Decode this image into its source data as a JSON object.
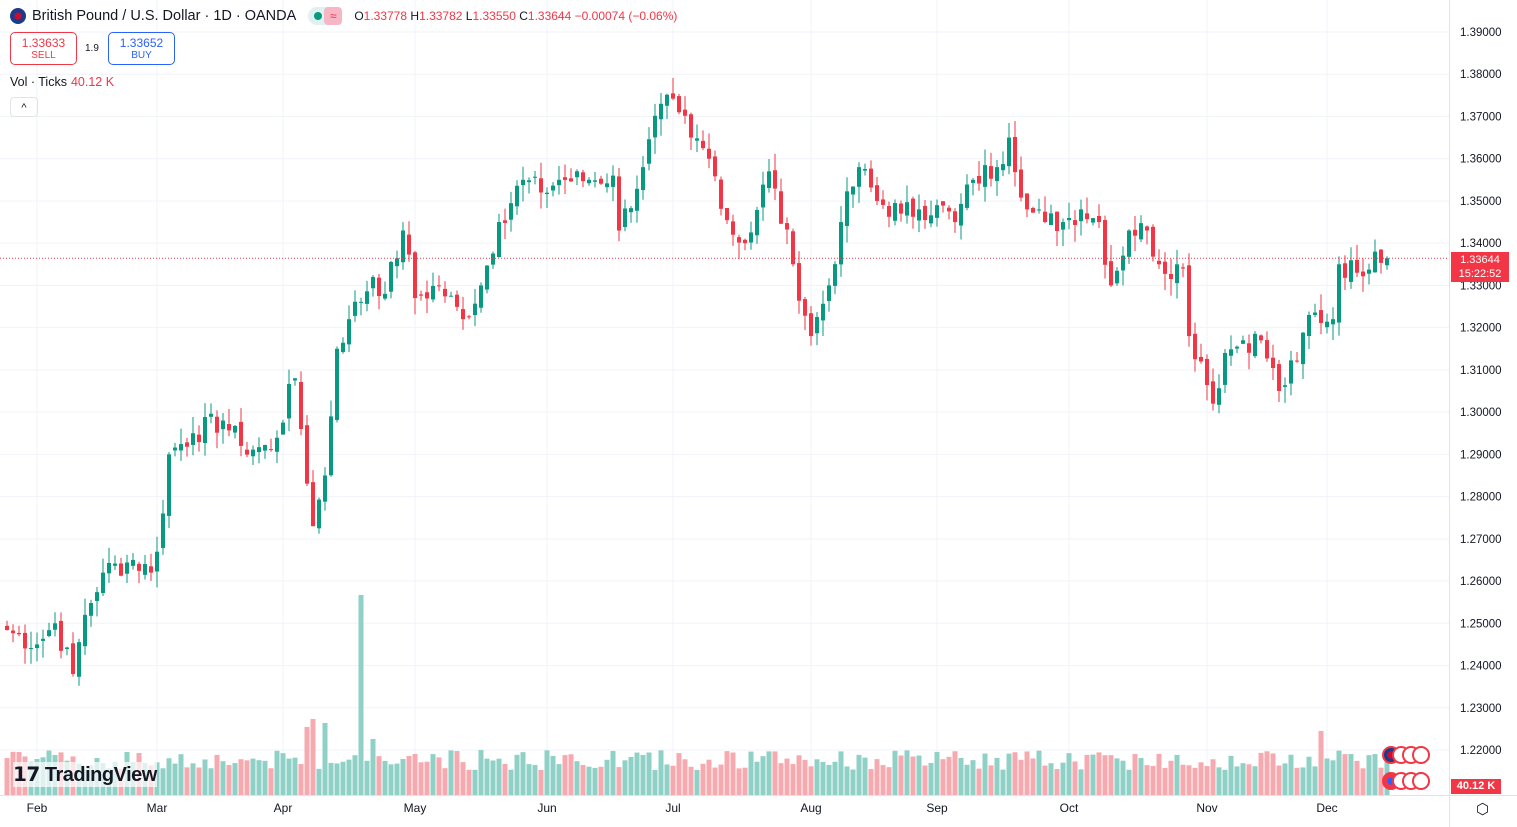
{
  "header": {
    "title": "British Pound / U.S. Dollar · 1D · OANDA",
    "open_label": "O",
    "open": "1.33778",
    "high_label": "H",
    "high": "1.33782",
    "low_label": "L",
    "low": "1.33550",
    "close_label": "C",
    "close": "1.33644",
    "change": "−0.00074 (−0.06%)",
    "market_icon": "≈"
  },
  "trade": {
    "sell_price": "1.33633",
    "sell_label": "SELL",
    "spread": "1.9",
    "buy_price": "1.33652",
    "buy_label": "BUY"
  },
  "volume": {
    "label": "Vol · Ticks",
    "value": "40.12 K"
  },
  "collapse_icon": "^",
  "price_tag": {
    "price": "1.33644",
    "countdown": "15:22:52"
  },
  "logo": "TradingView",
  "colors": {
    "up": "#089981",
    "down": "#f23645",
    "up_vol": "#8fd1c6",
    "down_vol": "#f7a9b0"
  },
  "chart_data": {
    "type": "candlestick",
    "y_ticks": [
      "1.39000",
      "1.38000",
      "1.37000",
      "1.36000",
      "1.35000",
      "1.34000",
      "1.33000",
      "1.32000",
      "1.31000",
      "1.30000",
      "1.29000",
      "1.28000",
      "1.27000",
      "1.26000",
      "1.25000",
      "1.24000",
      "1.23000",
      "1.22000"
    ],
    "ylim": [
      1.22,
      1.39
    ],
    "x_ticks": [
      {
        "label": "Feb",
        "day": 5
      },
      {
        "label": "Mar",
        "day": 25
      },
      {
        "label": "Apr",
        "day": 46
      },
      {
        "label": "May",
        "day": 68
      },
      {
        "label": "Jun",
        "day": 90
      },
      {
        "label": "Jul",
        "day": 111
      },
      {
        "label": "Aug",
        "day": 134
      },
      {
        "label": "Sep",
        "day": 155
      },
      {
        "label": "Oct",
        "day": 177
      },
      {
        "label": "Nov",
        "day": 200
      },
      {
        "label": "Dec",
        "day": 220
      }
    ],
    "close_anchors": [
      [
        0,
        1.2484
      ],
      [
        5,
        1.245
      ],
      [
        8,
        1.25
      ],
      [
        11,
        1.238
      ],
      [
        13,
        1.252
      ],
      [
        16,
        1.262
      ],
      [
        21,
        1.265
      ],
      [
        24,
        1.262
      ],
      [
        26,
        1.276
      ],
      [
        27,
        1.29
      ],
      [
        31,
        1.295
      ],
      [
        36,
        1.298
      ],
      [
        39,
        1.292
      ],
      [
        44,
        1.291
      ],
      [
        48,
        1.308
      ],
      [
        51,
        1.273
      ],
      [
        53,
        1.285
      ],
      [
        55,
        1.315
      ],
      [
        57,
        1.322
      ],
      [
        61,
        1.332
      ],
      [
        63,
        1.328
      ],
      [
        66,
        1.343
      ],
      [
        68,
        1.327
      ],
      [
        72,
        1.33
      ],
      [
        76,
        1.322
      ],
      [
        79,
        1.33
      ],
      [
        82,
        1.345
      ],
      [
        86,
        1.355
      ],
      [
        89,
        1.352
      ],
      [
        92,
        1.355
      ],
      [
        97,
        1.355
      ],
      [
        101,
        1.356
      ],
      [
        102,
        1.343
      ],
      [
        106,
        1.358
      ],
      [
        109,
        1.373
      ],
      [
        112,
        1.371
      ],
      [
        114,
        1.365
      ],
      [
        117,
        1.36
      ],
      [
        121,
        1.342
      ],
      [
        123,
        1.34
      ],
      [
        127,
        1.357
      ],
      [
        131,
        1.335
      ],
      [
        134,
        1.318
      ],
      [
        137,
        1.33
      ],
      [
        139,
        1.345
      ],
      [
        142,
        1.358
      ],
      [
        145,
        1.35
      ],
      [
        149,
        1.347
      ],
      [
        152,
        1.348
      ],
      [
        155,
        1.349
      ],
      [
        158,
        1.345
      ],
      [
        161,
        1.355
      ],
      [
        165,
        1.358
      ],
      [
        167,
        1.365
      ],
      [
        170,
        1.348
      ],
      [
        173,
        1.345
      ],
      [
        176,
        1.345
      ],
      [
        179,
        1.348
      ],
      [
        182,
        1.345
      ],
      [
        184,
        1.33
      ],
      [
        187,
        1.343
      ],
      [
        190,
        1.343
      ],
      [
        192,
        1.335
      ],
      [
        196,
        1.334
      ],
      [
        197,
        1.318
      ],
      [
        199,
        1.312
      ],
      [
        201,
        1.302
      ],
      [
        203,
        1.314
      ],
      [
        206,
        1.317
      ],
      [
        209,
        1.317
      ],
      [
        212,
        1.305
      ],
      [
        215,
        1.312
      ],
      [
        217,
        1.323
      ],
      [
        221,
        1.322
      ],
      [
        222,
        1.335
      ],
      [
        225,
        1.333
      ],
      [
        228,
        1.338
      ],
      [
        230,
        1.33644
      ]
    ],
    "volume_spikes": [
      [
        5,
        0.45
      ],
      [
        50,
        0.85
      ],
      [
        51,
        0.95
      ],
      [
        53,
        0.9
      ],
      [
        59,
        2.5
      ],
      [
        61,
        0.7
      ],
      [
        219,
        0.8
      ]
    ]
  }
}
